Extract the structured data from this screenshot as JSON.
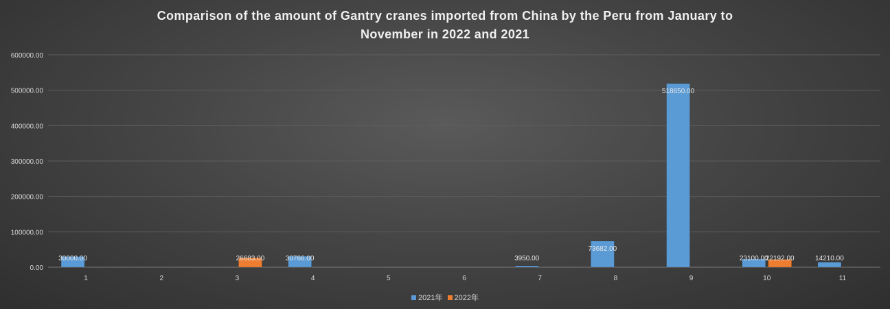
{
  "chart_data": {
    "type": "bar",
    "title_lines": [
      "Comparison of the amount of Gantry cranes imported from China by the Peru from January to",
      "November in 2022 and 2021"
    ],
    "categories": [
      "1",
      "2",
      "3",
      "4",
      "5",
      "6",
      "7",
      "8",
      "9",
      "10",
      "11"
    ],
    "series": [
      {
        "name": "2021年",
        "color": "#5b9bd5",
        "values": [
          30000.0,
          null,
          null,
          30766.0,
          null,
          null,
          3950.0,
          73682.0,
          518650.0,
          23100.0,
          14210.0
        ]
      },
      {
        "name": "2022年",
        "color": "#ed7d31",
        "values": [
          null,
          null,
          26683.0,
          null,
          null,
          null,
          null,
          null,
          null,
          22192.0,
          null
        ]
      }
    ],
    "data_labels": [
      [
        "30000.00",
        "",
        "",
        "30766.00",
        "",
        "",
        "3950.00",
        "73682.00",
        "518650.00",
        "23100.00",
        "14210.00"
      ],
      [
        "",
        "",
        "26683.00",
        "",
        "",
        "",
        "",
        "",
        "",
        "22192.00",
        ""
      ]
    ],
    "y_ticks": [
      "0.00",
      "100000.00",
      "200000.00",
      "300000.00",
      "400000.00",
      "500000.00",
      "600000.00"
    ],
    "ylim": [
      0,
      600000
    ],
    "grid": true,
    "legend_position": "bottom"
  }
}
